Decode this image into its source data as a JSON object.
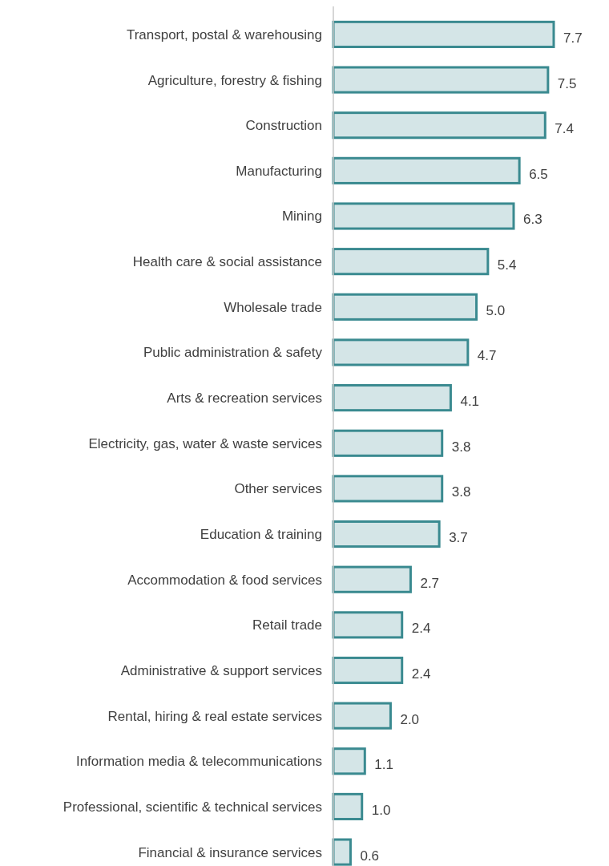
{
  "chart_data": {
    "type": "bar",
    "orientation": "horizontal",
    "categories": [
      "Transport, postal & warehousing",
      "Agriculture, forestry & fishing",
      "Construction",
      "Manufacturing",
      "Mining",
      "Health care & social assistance",
      "Wholesale trade",
      "Public administration & safety",
      "Arts & recreation services",
      "Electricity, gas, water & waste services",
      "Other services",
      "Education & training",
      "Accommodation & food services",
      "Retail trade",
      "Administrative & support services",
      "Rental, hiring & real estate services",
      "Information media & telecommunications",
      "Professional, scientific & technical services",
      "Financial & insurance services"
    ],
    "values": [
      7.7,
      7.5,
      7.4,
      6.5,
      6.3,
      5.4,
      5.0,
      4.7,
      4.1,
      3.8,
      3.8,
      3.7,
      2.7,
      2.4,
      2.4,
      2.0,
      1.1,
      1.0,
      0.6
    ],
    "value_labels": [
      "7.7",
      "7.5",
      "7.4",
      "6.5",
      "6.3",
      "5.4",
      "5.0",
      "4.7",
      "4.1",
      "3.8",
      "3.8",
      "3.7",
      "2.7",
      "2.4",
      "2.4",
      "2.0",
      "1.1",
      "1.0",
      "0.6"
    ],
    "color": "#3a8a90"
  }
}
